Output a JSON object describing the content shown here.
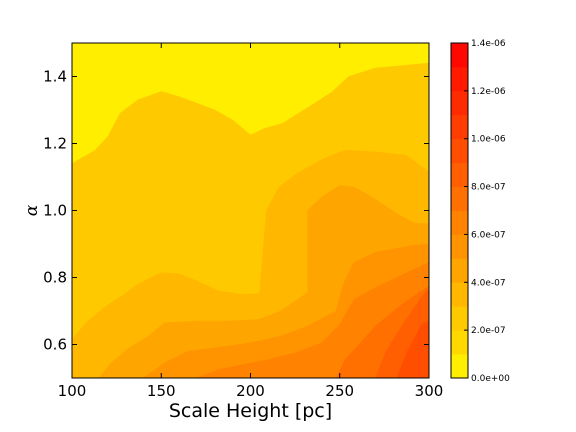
{
  "chart_data": {
    "type": "contourf",
    "title": "",
    "xlabel": "Scale Height [pc]",
    "ylabel": "α",
    "xlim": [
      100,
      300
    ],
    "ylim": [
      0.5,
      1.5
    ],
    "x_ticks": [
      {
        "value": 100,
        "label": "100"
      },
      {
        "value": 150,
        "label": "150"
      },
      {
        "value": 200,
        "label": "200"
      },
      {
        "value": 250,
        "label": "250"
      },
      {
        "value": 300,
        "label": "300"
      }
    ],
    "y_ticks": [
      {
        "value": 0.6,
        "label": "0.6"
      },
      {
        "value": 0.8,
        "label": "0.8"
      },
      {
        "value": 1.0,
        "label": "1.0"
      },
      {
        "value": 1.2,
        "label": "1.2"
      },
      {
        "value": 1.4,
        "label": "1.4"
      }
    ],
    "grid": false,
    "colorbar": {
      "position": "right",
      "range": [
        0,
        1.4e-06
      ],
      "tick_labels": [
        {
          "value": 0.0,
          "label": "0.0e+00"
        },
        {
          "value": 2e-07,
          "label": "2.0e-07"
        },
        {
          "value": 4e-07,
          "label": "4.0e-07"
        },
        {
          "value": 6e-07,
          "label": "6.0e-07"
        },
        {
          "value": 8e-07,
          "label": "8.0e-07"
        },
        {
          "value": 1e-06,
          "label": "1.0e-06"
        },
        {
          "value": 1.2e-06,
          "label": "1.2e-06"
        },
        {
          "value": 1.4e-06,
          "label": "1.4e-06"
        }
      ],
      "levels": [
        0.0,
        1e-07,
        2e-07,
        3e-07,
        4e-07,
        5e-07,
        6e-07,
        7e-07,
        8e-07,
        9e-07,
        1e-06,
        1.1e-06,
        1.2e-06,
        1.3e-06,
        1.4e-06
      ],
      "colors": [
        "#ffee00",
        "#ffd800",
        "#ffc900",
        "#ffb700",
        "#ffa500",
        "#ff9400",
        "#ff8300",
        "#ff7000",
        "#ff5f00",
        "#ff4e00",
        "#ff3d00",
        "#ff2b00",
        "#ff1a00",
        "#ff0800"
      ]
    },
    "contour_bands": [
      {
        "level_min": 1e-07,
        "level_max": 2e-07,
        "color": "#ffc900",
        "boundary": [
          [
            100,
            1.14
          ],
          [
            113,
            1.18
          ],
          [
            120,
            1.22
          ],
          [
            127,
            1.29
          ],
          [
            137,
            1.33
          ],
          [
            150,
            1.355
          ],
          [
            160,
            1.34
          ],
          [
            170,
            1.32
          ],
          [
            180,
            1.3
          ],
          [
            190,
            1.27
          ],
          [
            200,
            1.225
          ],
          [
            208,
            1.245
          ],
          [
            218,
            1.26
          ],
          [
            233,
            1.31
          ],
          [
            246,
            1.355
          ],
          [
            255,
            1.4
          ],
          [
            270,
            1.425
          ],
          [
            290,
            1.435
          ],
          [
            300,
            1.44
          ],
          [
            300,
            0.5
          ],
          [
            100,
            0.5
          ]
        ]
      },
      {
        "level_min": 2e-07,
        "level_max": 3e-07,
        "color": "#ffb700",
        "boundary": [
          [
            100,
            0.615
          ],
          [
            108,
            0.665
          ],
          [
            118,
            0.71
          ],
          [
            128,
            0.745
          ],
          [
            137,
            0.78
          ],
          [
            150,
            0.815
          ],
          [
            160,
            0.81
          ],
          [
            170,
            0.79
          ],
          [
            182,
            0.76
          ],
          [
            195,
            0.75
          ],
          [
            205,
            0.752
          ],
          [
            209,
            1.0
          ],
          [
            216,
            1.07
          ],
          [
            226,
            1.11
          ],
          [
            241,
            1.155
          ],
          [
            253,
            1.18
          ],
          [
            270,
            1.175
          ],
          [
            287,
            1.165
          ],
          [
            300,
            1.115
          ],
          [
            300,
            0.5
          ],
          [
            100,
            0.5
          ]
        ]
      },
      {
        "level_min": 3e-07,
        "level_max": 4e-07,
        "color": "#ffa500",
        "boundary": [
          [
            115,
            0.5
          ],
          [
            122,
            0.545
          ],
          [
            132,
            0.59
          ],
          [
            143,
            0.625
          ],
          [
            152,
            0.665
          ],
          [
            170,
            0.67
          ],
          [
            188,
            0.67
          ],
          [
            205,
            0.675
          ],
          [
            217,
            0.7
          ],
          [
            232,
            0.755
          ],
          [
            232,
            1.0
          ],
          [
            240,
            1.04
          ],
          [
            250,
            1.075
          ],
          [
            258,
            1.07
          ],
          [
            268,
            1.04
          ],
          [
            282,
            0.99
          ],
          [
            292,
            0.962
          ],
          [
            300,
            0.96
          ],
          [
            300,
            0.5
          ]
        ]
      },
      {
        "level_min": 4e-07,
        "level_max": 5e-07,
        "color": "#ff9400",
        "boundary": [
          [
            140,
            0.5
          ],
          [
            152,
            0.545
          ],
          [
            165,
            0.58
          ],
          [
            180,
            0.59
          ],
          [
            200,
            0.605
          ],
          [
            217,
            0.625
          ],
          [
            232,
            0.655
          ],
          [
            248,
            0.7
          ],
          [
            252,
            0.78
          ],
          [
            258,
            0.845
          ],
          [
            270,
            0.875
          ],
          [
            290,
            0.895
          ],
          [
            300,
            0.9
          ],
          [
            300,
            0.5
          ]
        ]
      },
      {
        "level_min": 5e-07,
        "level_max": 6e-07,
        "color": "#ff8300",
        "boundary": [
          [
            170,
            0.5
          ],
          [
            182,
            0.525
          ],
          [
            196,
            0.54
          ],
          [
            210,
            0.555
          ],
          [
            225,
            0.575
          ],
          [
            240,
            0.605
          ],
          [
            250,
            0.66
          ],
          [
            258,
            0.735
          ],
          [
            270,
            0.77
          ],
          [
            290,
            0.82
          ],
          [
            300,
            0.845
          ],
          [
            300,
            0.5
          ]
        ]
      },
      {
        "level_min": 6e-07,
        "level_max": 7e-07,
        "color": "#ff7000",
        "boundary": [
          [
            248,
            0.5
          ],
          [
            253,
            0.555
          ],
          [
            260,
            0.595
          ],
          [
            270,
            0.655
          ],
          [
            285,
            0.72
          ],
          [
            300,
            0.775
          ],
          [
            300,
            0.5
          ]
        ]
      },
      {
        "level_min": 7e-07,
        "level_max": 8e-07,
        "color": "#ff5f00",
        "boundary": [
          [
            270,
            0.5
          ],
          [
            276,
            0.58
          ],
          [
            286,
            0.665
          ],
          [
            297,
            0.75
          ],
          [
            300,
            0.765
          ],
          [
            300,
            0.5
          ]
        ]
      },
      {
        "level_min": 8e-07,
        "level_max": 9e-07,
        "color": "#ff4e00",
        "boundary": [
          [
            282,
            0.5
          ],
          [
            288,
            0.58
          ],
          [
            296,
            0.66
          ],
          [
            300,
            0.67
          ],
          [
            300,
            0.5
          ]
        ]
      }
    ]
  }
}
